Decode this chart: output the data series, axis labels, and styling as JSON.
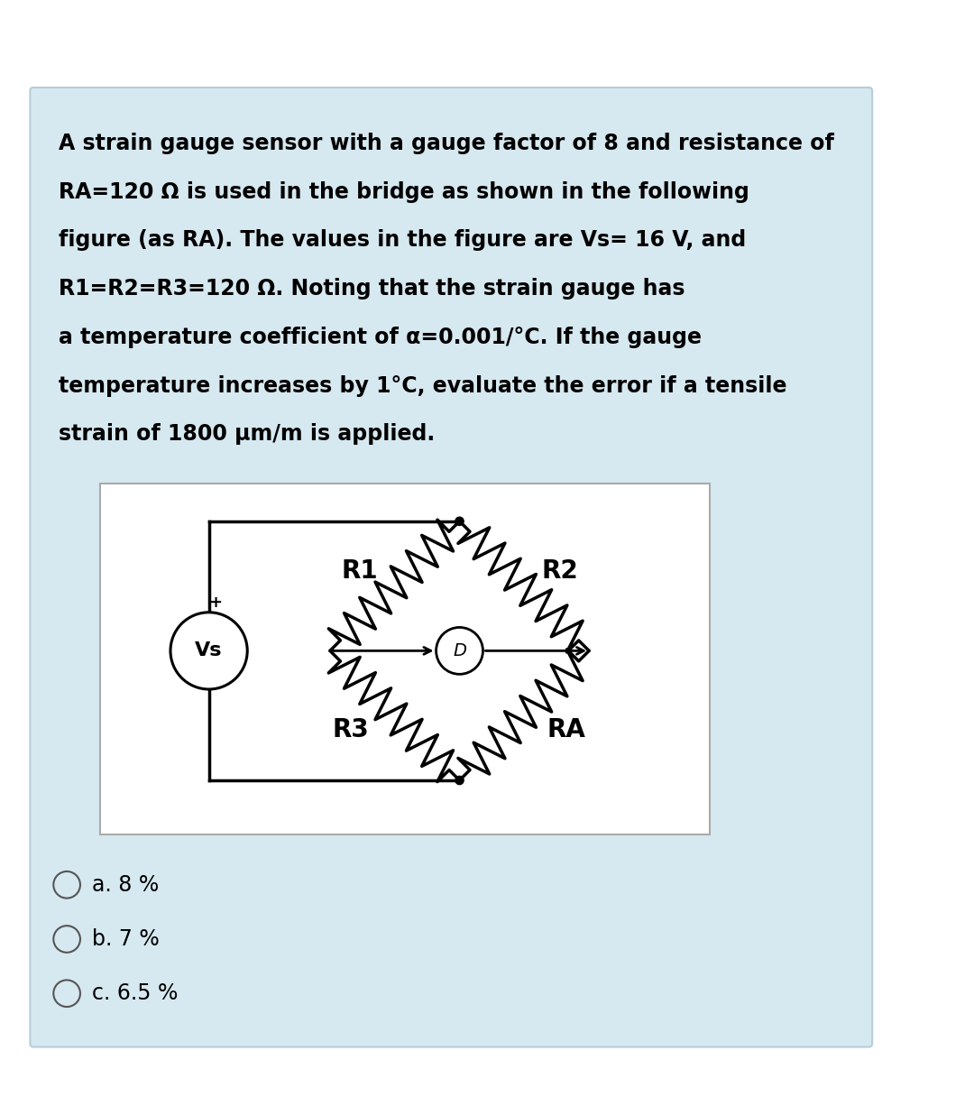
{
  "bg_color": "#ffffff",
  "card_bg": "#d6e8f0",
  "circuit_bg": "#ffffff",
  "text_color": "#000000",
  "question_lines": [
    "A strain gauge sensor with a gauge factor of 8 and resistance of",
    "RA=120 Ω is used in the bridge as shown in the following",
    "figure (as RA). The values in the figure are Vs= 16 V, and",
    "R1=R2=R3=120 Ω. Noting that the strain gauge has",
    "a temperature coefficient of α=0.001/°C. If the gauge",
    "temperature increases by 1°C, evaluate the error if a tensile",
    "strain of 1800 μm/m is applied."
  ],
  "options": [
    "a. 8 %",
    "b. 7 %",
    "c. 6.5 %"
  ],
  "r1_label": "R1",
  "r2_label": "R2",
  "r3_label": "R3",
  "ra_label": "RA",
  "d_label": "D",
  "vs_label": "Vs",
  "card_border": "#b8cdd8"
}
